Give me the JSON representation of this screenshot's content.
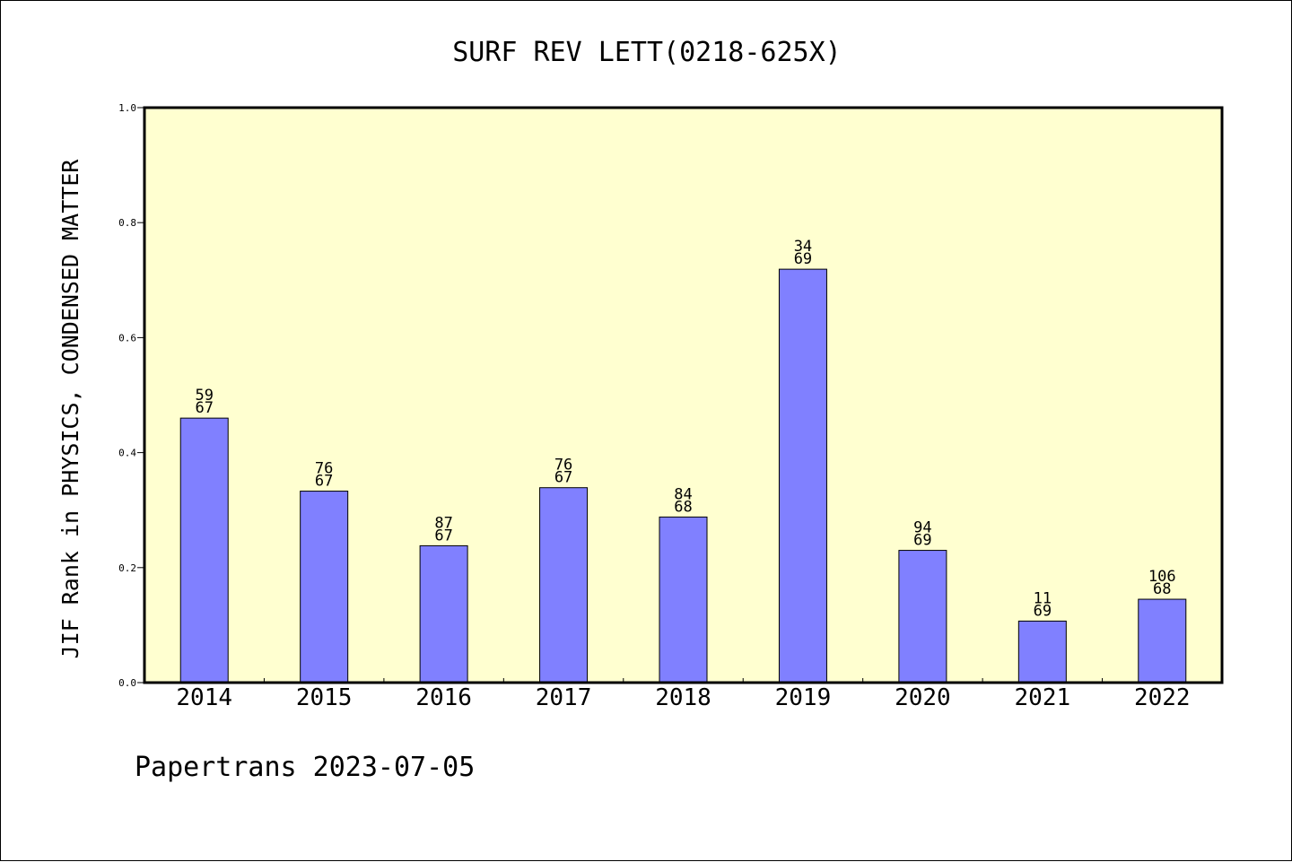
{
  "chart_data": {
    "type": "bar",
    "title": "SURF REV LETT(0218-625X)",
    "ylabel": "JIF Rank in PHYSICS, CONDENSED MATTER",
    "xlabel": "",
    "categories": [
      "2014",
      "2015",
      "2016",
      "2017",
      "2018",
      "2019",
      "2020",
      "2021",
      "2022"
    ],
    "values": [
      0.46,
      0.333,
      0.238,
      0.339,
      0.288,
      0.719,
      0.23,
      0.107,
      0.145
    ],
    "rank": [
      "59",
      "76",
      "87",
      "76",
      "84",
      "34",
      "94",
      "11",
      "106"
    ],
    "total": [
      "67",
      "67",
      "67",
      "67",
      "68",
      "69",
      "69",
      "69",
      "68"
    ],
    "ylim": [
      0,
      1.0
    ],
    "yticks": [
      "0.0",
      "0.2",
      "0.4",
      "0.6",
      "0.8",
      "1.0"
    ],
    "grid": false,
    "colors": {
      "bar": "#8080ff",
      "plot_bg": "#ffffd0",
      "axis": "#000000"
    }
  },
  "footer": "Papertrans 2023-07-05"
}
